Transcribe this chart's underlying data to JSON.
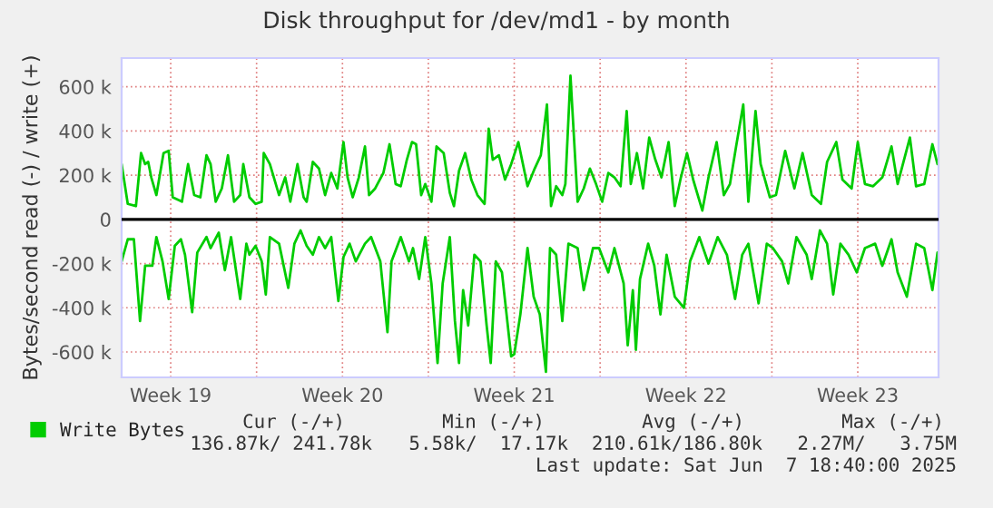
{
  "chart_data": {
    "type": "line",
    "title": "Disk throughput for /dev/md1 - by month",
    "ylabel": "Bytes/second read (-) / write (+)",
    "xlim": [
      "2025-05-05T12:00",
      "2025-06-07T19:00"
    ],
    "xticks": [
      {
        "value": "2025-05-07T12:00",
        "label": "Week 19"
      },
      {
        "value": "2025-05-11T00:00",
        "label": null
      },
      {
        "value": "2025-05-14T12:00",
        "label": "Week 20"
      },
      {
        "value": "2025-05-18T00:00",
        "label": null
      },
      {
        "value": "2025-05-21T12:00",
        "label": "Week 21"
      },
      {
        "value": "2025-05-25T00:00",
        "label": null
      },
      {
        "value": "2025-05-28T12:00",
        "label": "Week 22"
      },
      {
        "value": "2025-06-01T00:00",
        "label": null
      },
      {
        "value": "2025-06-04T12:00",
        "label": "Week 23"
      }
    ],
    "ylim": [
      -715000,
      730000
    ],
    "yticks": [
      {
        "value": -600000,
        "label": "-600 k"
      },
      {
        "value": -400000,
        "label": "-400 k"
      },
      {
        "value": -200000,
        "label": "-200 k"
      },
      0,
      {
        "value": 200000,
        "label": "200 k"
      },
      {
        "value": 400000,
        "label": "400 k"
      },
      {
        "value": 600000,
        "label": "600 k"
      }
    ],
    "grid": true,
    "legend": "bottom",
    "ref_lines": [
      {
        "axis": "y",
        "value": 0,
        "color": "#000000"
      }
    ],
    "annotations": [
      "Cur (-/+)",
      "Min (-/+)",
      "Avg (-/+)",
      "Max (-/+)",
      "136.87k/ 241.78k",
      "5.58k/  17.17k",
      "210.61k/186.80k",
      "2.27M/   3.75M",
      "Last update: Sat Jun  7 18:40:00 2025"
    ],
    "series": [
      {
        "name": "Write Bytes",
        "color": "#00cc00",
        "x": [
          "2025-05-05T12:00",
          "2025-05-05T18:00",
          "2025-05-06T02:00",
          "2025-05-06T07:00",
          "2025-05-06T11:00",
          "2025-05-06T14:00",
          "2025-05-06T17:00",
          "2025-05-06T22:00",
          "2025-05-07T05:00",
          "2025-05-07T10:00",
          "2025-05-07T14:00",
          "2025-05-07T23:00",
          "2025-05-08T05:00",
          "2025-05-08T11:00",
          "2025-05-08T17:00",
          "2025-05-08T23:00",
          "2025-05-09T03:00",
          "2025-05-09T08:00",
          "2025-05-09T14:00",
          "2025-05-09T20:00",
          "2025-05-10T02:00",
          "2025-05-10T08:00",
          "2025-05-10T11:00",
          "2025-05-10T17:00",
          "2025-05-10T23:00",
          "2025-05-11T05:00",
          "2025-05-11T07:00",
          "2025-05-11T13:00",
          "2025-05-11T22:00",
          "2025-05-12T04:00",
          "2025-05-12T09:00",
          "2025-05-12T16:00",
          "2025-05-12T22:00",
          "2025-05-13T01:00",
          "2025-05-13T07:00",
          "2025-05-13T13:00",
          "2025-05-13T19:00",
          "2025-05-14T01:00",
          "2025-05-14T07:00",
          "2025-05-14T13:00",
          "2025-05-14T17:00",
          "2025-05-14T22:00",
          "2025-05-15T04:00",
          "2025-05-15T10:00",
          "2025-05-15T14:00",
          "2025-05-15T20:00",
          "2025-05-16T04:00",
          "2025-05-16T10:00",
          "2025-05-16T16:00",
          "2025-05-16T21:00",
          "2025-05-17T03:00",
          "2025-05-17T08:00",
          "2025-05-17T12:00",
          "2025-05-17T17:00",
          "2025-05-17T21:00",
          "2025-05-18T03:00",
          "2025-05-18T08:00",
          "2025-05-18T15:00",
          "2025-05-18T21:00",
          "2025-05-19T01:00",
          "2025-05-19T06:00",
          "2025-05-19T12:00",
          "2025-05-19T18:00",
          "2025-05-20T00:00",
          "2025-05-20T07:00",
          "2025-05-20T11:00",
          "2025-05-20T15:00",
          "2025-05-20T21:00",
          "2025-05-21T03:00",
          "2025-05-21T09:00",
          "2025-05-21T16:00",
          "2025-05-22T01:00",
          "2025-05-22T08:00",
          "2025-05-22T14:00",
          "2025-05-22T20:00",
          "2025-05-23T00:00",
          "2025-05-23T05:00",
          "2025-05-23T11:00",
          "2025-05-23T14:00",
          "2025-05-23T19:00",
          "2025-05-24T02:00",
          "2025-05-24T08:00",
          "2025-05-24T14:00",
          "2025-05-24T20:00",
          "2025-05-25T02:00",
          "2025-05-25T08:00",
          "2025-05-25T14:00",
          "2025-05-25T20:00",
          "2025-05-26T02:00",
          "2025-05-26T06:00",
          "2025-05-26T12:00",
          "2025-05-26T18:00",
          "2025-05-27T00:00",
          "2025-05-27T06:00",
          "2025-05-27T12:00",
          "2025-05-27T19:00",
          "2025-05-28T01:00",
          "2025-05-28T07:00",
          "2025-05-28T13:00",
          "2025-05-28T19:00",
          "2025-05-29T04:00",
          "2025-05-29T10:00",
          "2025-05-29T18:00",
          "2025-05-30T01:00",
          "2025-05-30T07:00",
          "2025-05-30T13:00",
          "2025-05-30T20:00",
          "2025-05-31T01:00",
          "2025-05-31T08:00",
          "2025-05-31T13:00",
          "2025-05-31T22:00",
          "2025-06-01T04:00",
          "2025-06-01T13:00",
          "2025-06-01T22:00",
          "2025-06-02T06:00",
          "2025-06-02T15:00",
          "2025-06-03T00:00",
          "2025-06-03T06:00",
          "2025-06-03T15:00",
          "2025-06-03T21:00",
          "2025-06-04T06:00",
          "2025-06-04T12:00",
          "2025-06-04T19:00",
          "2025-06-05T03:00",
          "2025-06-05T12:00",
          "2025-06-05T21:00",
          "2025-06-06T03:00",
          "2025-06-06T15:00",
          "2025-06-06T21:00",
          "2025-06-07T05:00",
          "2025-06-07T13:00",
          "2025-06-07T18:00",
          "2025-06-07T19:00"
        ],
        "values": [
          250000,
          70000,
          60000,
          300000,
          250000,
          260000,
          190000,
          110000,
          300000,
          310000,
          100000,
          80000,
          250000,
          110000,
          100000,
          290000,
          250000,
          80000,
          140000,
          290000,
          80000,
          110000,
          250000,
          100000,
          70000,
          80000,
          300000,
          250000,
          110000,
          190000,
          80000,
          250000,
          100000,
          80000,
          260000,
          230000,
          110000,
          210000,
          140000,
          350000,
          190000,
          100000,
          190000,
          330000,
          110000,
          140000,
          210000,
          340000,
          160000,
          150000,
          270000,
          350000,
          340000,
          110000,
          160000,
          80000,
          330000,
          300000,
          120000,
          60000,
          220000,
          300000,
          180000,
          110000,
          70000,
          410000,
          270000,
          290000,
          180000,
          250000,
          350000,
          150000,
          230000,
          290000,
          520000,
          60000,
          150000,
          110000,
          160000,
          650000,
          80000,
          140000,
          230000,
          160000,
          80000,
          210000,
          190000,
          150000,
          490000,
          160000,
          300000,
          140000,
          370000,
          270000,
          190000,
          350000,
          60000,
          190000,
          300000,
          180000,
          40000,
          190000,
          350000,
          110000,
          160000,
          330000,
          520000,
          80000,
          490000,
          250000,
          100000,
          110000,
          310000,
          140000,
          300000,
          110000,
          70000,
          260000,
          350000,
          180000,
          140000,
          350000,
          160000,
          150000,
          190000,
          330000,
          160000,
          370000,
          150000,
          160000,
          340000,
          250000,
          260000
        ]
      },
      {
        "color": "#00cc00",
        "x": [
          "2025-05-05T12:00",
          "2025-05-05T18:00",
          "2025-05-06T00:00",
          "2025-05-06T06:00",
          "2025-05-06T11:00",
          "2025-05-06T18:00",
          "2025-05-06T22:00",
          "2025-05-07T04:00",
          "2025-05-07T10:00",
          "2025-05-07T16:00",
          "2025-05-07T22:00",
          "2025-05-08T02:00",
          "2025-05-08T09:00",
          "2025-05-08T14:00",
          "2025-05-08T23:00",
          "2025-05-09T03:00",
          "2025-05-09T11:00",
          "2025-05-09T17:00",
          "2025-05-09T23:00",
          "2025-05-10T08:00",
          "2025-05-10T14:00",
          "2025-05-10T17:00",
          "2025-05-10T23:00",
          "2025-05-11T05:00",
          "2025-05-11T09:00",
          "2025-05-11T13:00",
          "2025-05-11T22:00",
          "2025-05-12T07:00",
          "2025-05-12T13:00",
          "2025-05-12T19:00",
          "2025-05-13T01:00",
          "2025-05-13T07:00",
          "2025-05-13T13:00",
          "2025-05-13T19:00",
          "2025-05-14T01:00",
          "2025-05-14T08:00",
          "2025-05-14T13:00",
          "2025-05-14T19:00",
          "2025-05-15T01:00",
          "2025-05-15T10:00",
          "2025-05-15T16:00",
          "2025-05-16T01:00",
          "2025-05-16T08:00",
          "2025-05-16T12:00",
          "2025-05-16T21:00",
          "2025-05-17T05:00",
          "2025-05-17T09:00",
          "2025-05-17T15:00",
          "2025-05-17T21:00",
          "2025-05-18T03:00",
          "2025-05-18T09:00",
          "2025-05-18T14:00",
          "2025-05-18T21:00",
          "2025-05-19T02:00",
          "2025-05-19T06:00",
          "2025-05-19T10:00",
          "2025-05-19T15:00",
          "2025-05-19T21:00",
          "2025-05-20T03:00",
          "2025-05-20T09:00",
          "2025-05-20T13:00",
          "2025-05-20T18:00",
          "2025-05-21T00:00",
          "2025-05-21T09:00",
          "2025-05-21T12:00",
          "2025-05-21T18:00",
          "2025-05-22T01:00",
          "2025-05-22T07:00",
          "2025-05-22T13:00",
          "2025-05-22T19:00",
          "2025-05-22T23:00",
          "2025-05-23T05:00",
          "2025-05-23T11:00",
          "2025-05-23T17:00",
          "2025-05-24T02:00",
          "2025-05-24T08:00",
          "2025-05-24T17:00",
          "2025-05-24T23:00",
          "2025-05-25T08:00",
          "2025-05-25T14:00",
          "2025-05-25T23:00",
          "2025-05-26T03:00",
          "2025-05-26T08:00",
          "2025-05-26T11:00",
          "2025-05-26T15:00",
          "2025-05-26T23:00",
          "2025-05-27T05:00",
          "2025-05-27T11:00",
          "2025-05-27T17:00",
          "2025-05-28T01:00",
          "2025-05-28T10:00",
          "2025-05-28T16:00",
          "2025-05-29T01:00",
          "2025-05-29T10:00",
          "2025-05-29T19:00",
          "2025-05-30T04:00",
          "2025-05-30T12:00",
          "2025-05-30T19:00",
          "2025-05-31T01:00",
          "2025-05-31T11:00",
          "2025-05-31T19:00",
          "2025-06-01T01:00",
          "2025-06-01T10:00",
          "2025-06-01T16:00",
          "2025-06-02T00:00",
          "2025-06-02T10:00",
          "2025-06-02T15:00",
          "2025-06-02T23:00",
          "2025-06-03T06:00",
          "2025-06-03T12:00",
          "2025-06-03T19:00",
          "2025-06-04T03:00",
          "2025-06-04T11:00",
          "2025-06-04T19:00",
          "2025-06-05T05:00",
          "2025-06-05T12:00",
          "2025-06-05T21:00",
          "2025-06-06T03:00",
          "2025-06-06T12:00",
          "2025-06-06T21:00",
          "2025-06-07T05:00",
          "2025-06-07T13:00",
          "2025-06-07T18:00"
        ],
        "values": [
          -190000,
          -90000,
          -90000,
          -460000,
          -210000,
          -210000,
          -80000,
          -190000,
          -360000,
          -120000,
          -90000,
          -160000,
          -420000,
          -150000,
          -80000,
          -130000,
          -60000,
          -230000,
          -80000,
          -360000,
          -110000,
          -160000,
          -120000,
          -190000,
          -340000,
          -80000,
          -110000,
          -310000,
          -110000,
          -50000,
          -120000,
          -160000,
          -80000,
          -130000,
          -80000,
          -370000,
          -170000,
          -110000,
          -190000,
          -110000,
          -80000,
          -190000,
          -510000,
          -190000,
          -80000,
          -190000,
          -130000,
          -270000,
          -80000,
          -290000,
          -650000,
          -290000,
          -80000,
          -460000,
          -650000,
          -320000,
          -480000,
          -160000,
          -190000,
          -480000,
          -650000,
          -190000,
          -240000,
          -620000,
          -610000,
          -430000,
          -130000,
          -350000,
          -430000,
          -690000,
          -130000,
          -160000,
          -460000,
          -110000,
          -130000,
          -320000,
          -130000,
          -130000,
          -240000,
          -130000,
          -290000,
          -570000,
          -320000,
          -590000,
          -270000,
          -110000,
          -210000,
          -430000,
          -160000,
          -350000,
          -400000,
          -190000,
          -80000,
          -200000,
          -80000,
          -160000,
          -360000,
          -160000,
          -110000,
          -380000,
          -110000,
          -130000,
          -190000,
          -290000,
          -80000,
          -160000,
          -270000,
          -50000,
          -110000,
          -340000,
          -110000,
          -160000,
          -240000,
          -130000,
          -110000,
          -210000,
          -90000,
          -240000,
          -350000,
          -110000,
          -130000,
          -320000,
          -150000
        ]
      }
    ]
  }
}
